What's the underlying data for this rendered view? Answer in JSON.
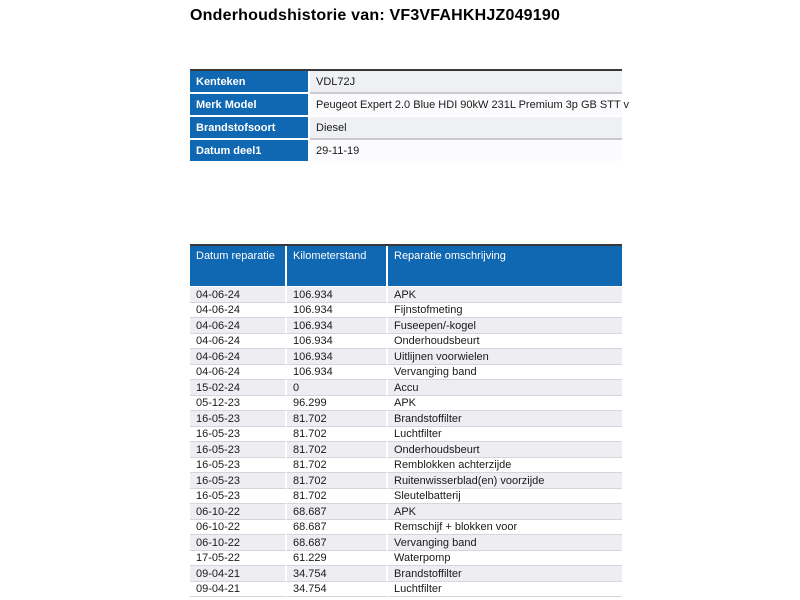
{
  "page": {
    "title": "Onderhoudshistorie van: VF3VFAHKHJZ049190"
  },
  "vehicle_info": {
    "rows": [
      {
        "label": "Kenteken",
        "value": "VDL72J"
      },
      {
        "label": "Merk Model",
        "value": "Peugeot Expert 2.0 Blue HDI 90kW 231L Premium 3p GB STT v"
      },
      {
        "label": "Brandstofsoort",
        "value": "Diesel"
      },
      {
        "label": "Datum deel1",
        "value": "29-11-19"
      }
    ]
  },
  "history": {
    "columns": [
      "Datum reparatie",
      "Kilometerstand",
      "Reparatie omschrijving"
    ],
    "rows": [
      [
        "04-06-24",
        "106.934",
        "APK"
      ],
      [
        "04-06-24",
        "106.934",
        "Fijnstofmeting"
      ],
      [
        "04-06-24",
        "106.934",
        "Fuseepen/-kogel"
      ],
      [
        "04-06-24",
        "106.934",
        "Onderhoudsbeurt"
      ],
      [
        "04-06-24",
        "106.934",
        "Uitlijnen voorwielen"
      ],
      [
        "04-06-24",
        "106.934",
        "Vervanging band"
      ],
      [
        "15-02-24",
        "0",
        "Accu"
      ],
      [
        "05-12-23",
        "96.299",
        "APK"
      ],
      [
        "16-05-23",
        "81.702",
        "Brandstoffilter"
      ],
      [
        "16-05-23",
        "81.702",
        "Luchtfilter"
      ],
      [
        "16-05-23",
        "81.702",
        "Onderhoudsbeurt"
      ],
      [
        "16-05-23",
        "81.702",
        "Remblokken achterzijde"
      ],
      [
        "16-05-23",
        "81.702",
        "Ruitenwisserblad(en) voorzijde"
      ],
      [
        "16-05-23",
        "81.702",
        "Sleutelbatterij"
      ],
      [
        "06-10-22",
        "68.687",
        "APK"
      ],
      [
        "06-10-22",
        "68.687",
        "Remschijf + blokken voor"
      ],
      [
        "06-10-22",
        "68.687",
        "Vervanging band"
      ],
      [
        "17-05-22",
        "61.229",
        "Waterpomp"
      ],
      [
        "09-04-21",
        "34.754",
        "Brandstoffilter"
      ],
      [
        "09-04-21",
        "34.754",
        "Luchtfilter"
      ]
    ]
  },
  "colors": {
    "header_blue": "#1067b2",
    "table_top_border": "#38383c",
    "alt_row_bg": "#ededf2",
    "base_row_bg": "#ffffff",
    "row_border": "#d5d5de",
    "header_text": "#ffffff",
    "body_text": "#1a1a1a"
  }
}
